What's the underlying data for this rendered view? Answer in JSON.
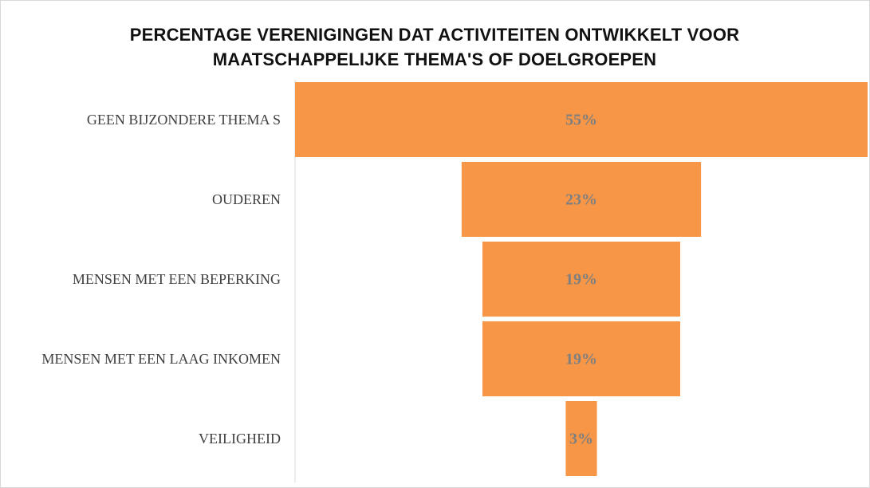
{
  "chart_data": {
    "type": "funnel",
    "title": "PERCENTAGE VERENIGINGEN DAT ACTIVITEITEN ONTWIKKELT VOOR MAATSCHAPPELIJKE THEMA'S OF DOELGROEPEN",
    "categories": [
      "GEEN BIJZONDERE THEMA S",
      "OUDEREN",
      "MENSEN MET EEN BEPERKING",
      "MENSEN MET EEN LAAG INKOMEN",
      "VEILIGHEID"
    ],
    "values": [
      55,
      23,
      19,
      19,
      3
    ],
    "value_labels": [
      "55%",
      "23%",
      "19%",
      "19%",
      "3%"
    ],
    "color": "#f79646"
  }
}
